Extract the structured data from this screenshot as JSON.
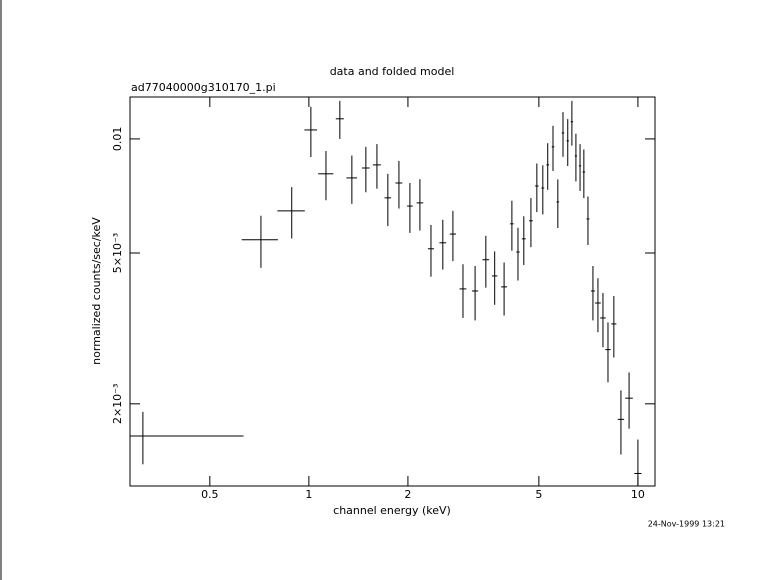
{
  "chart_data": {
    "type": "scatter",
    "title": "data and folded model",
    "subtitle": "ad77040000g310170_1.pi",
    "x_label": "channel energy (keV)",
    "y_label": "normalized counts/sec/keV",
    "footer": "24-Nov-1999 13:21",
    "log_x": true,
    "log_y": true,
    "xlim": [
      0.286,
      11.27
    ],
    "ylim": [
      0.001214,
      0.0129
    ],
    "xticks": [
      0.5,
      1,
      2,
      5,
      10
    ],
    "yticks": [
      {
        "value": 0.002,
        "label": "2×10⁻³"
      },
      {
        "value": 0.005,
        "label": "5×10⁻³"
      },
      0.01
    ],
    "series": [
      {
        "color": "#000000",
        "x": [
          0.313,
          0.715,
          0.887,
          1.014,
          1.127,
          1.242,
          1.351,
          1.49,
          1.61,
          1.738,
          1.878,
          2.028,
          2.175,
          2.35,
          2.553,
          2.74,
          2.94,
          3.2,
          3.45,
          3.67,
          3.92,
          4.14,
          4.32,
          4.5,
          4.73,
          4.93,
          5.14,
          5.32,
          5.52,
          5.71,
          5.92,
          6.12,
          6.3,
          6.48,
          6.67,
          6.85,
          7.05,
          7.3,
          7.56,
          7.83,
          8.11,
          8.45,
          8.88,
          9.4,
          10.0
        ],
        "x_err": [
          0.32,
          0.09,
          0.085,
          0.045,
          0.06,
          0.035,
          0.05,
          0.04,
          0.045,
          0.04,
          0.045,
          0.04,
          0.05,
          0.05,
          0.06,
          0.06,
          0.07,
          0.07,
          0.08,
          0.07,
          0.08,
          0.05,
          0.05,
          0.06,
          0.06,
          0.06,
          0.05,
          0.05,
          0.05,
          0.05,
          0.05,
          0.05,
          0.05,
          0.05,
          0.05,
          0.06,
          0.07,
          0.1,
          0.15,
          0.15,
          0.15,
          0.15,
          0.2,
          0.25,
          0.25
        ],
        "values": [
          0.001645,
          0.00542,
          0.00646,
          0.01056,
          0.00809,
          0.0113,
          0.00789,
          0.00838,
          0.00854,
          0.00699,
          0.00765,
          0.00665,
          0.00678,
          0.00513,
          0.00532,
          0.00561,
          0.00402,
          0.00397,
          0.0048,
          0.00435,
          0.00407,
          0.00597,
          0.00503,
          0.00545,
          0.00608,
          0.00751,
          0.00742,
          0.00854,
          0.00953,
          0.00682,
          0.01037,
          0.00988,
          0.0111,
          0.00902,
          0.00849,
          0.00818,
          0.00615,
          0.00397,
          0.00369,
          0.00337,
          0.00278,
          0.00325,
          0.00182,
          0.00207,
          0.00131
        ],
        "y_err": [
          0.00026,
          0.00085,
          0.001,
          0.0016,
          0.0012,
          0.0013,
          0.00115,
          0.00115,
          0.00115,
          0.0011,
          0.0011,
          0.001,
          0.00105,
          0.0008,
          0.0008,
          0.00085,
          0.00065,
          0.00065,
          0.00075,
          0.0007,
          0.00065,
          0.0009,
          0.0008,
          0.0008,
          0.0009,
          0.0011,
          0.0011,
          0.0012,
          0.0013,
          0.001,
          0.0014,
          0.0014,
          0.0015,
          0.0013,
          0.0012,
          0.0012,
          0.0009,
          0.00065,
          0.0006,
          0.00055,
          0.0005,
          0.0006,
          0.00035,
          0.00035,
          0.0003
        ]
      }
    ]
  }
}
